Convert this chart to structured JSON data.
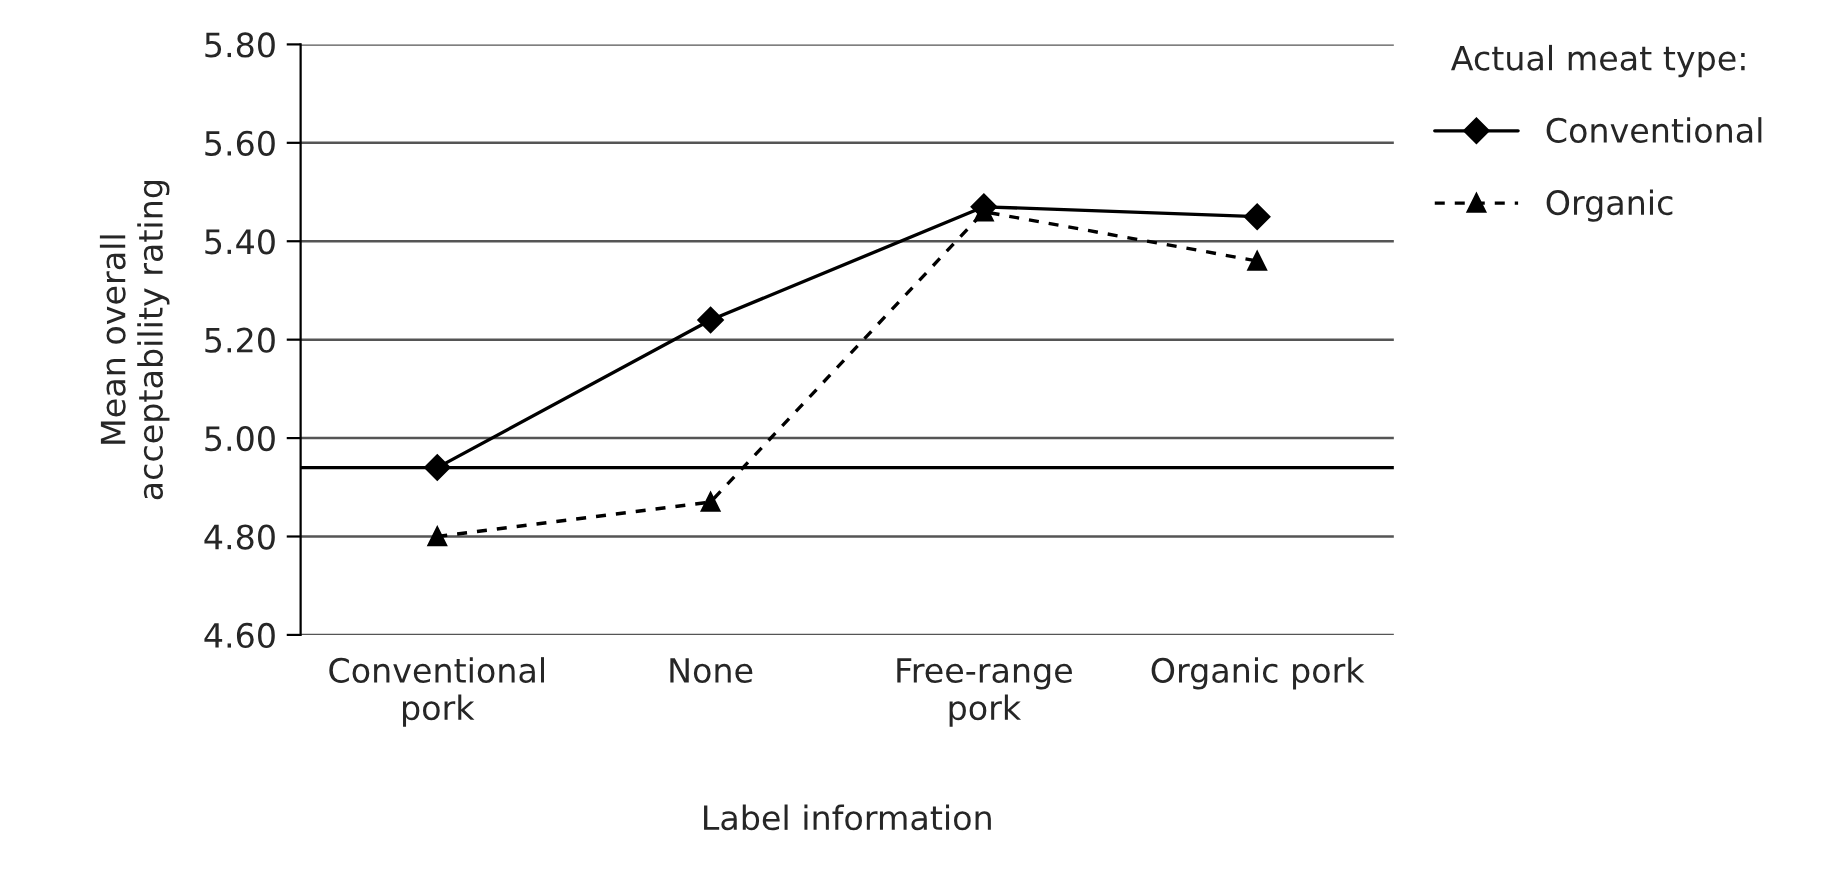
{
  "chart_data": {
    "type": "line",
    "xlabel": "Label information",
    "ylabel": "Mean overall\nacceptability rating",
    "legend_title": "Actual meat type:",
    "categories": [
      "Conventional\npork",
      "None",
      "Free-range\npork",
      "Organic pork"
    ],
    "series": [
      {
        "name": "Conventional",
        "color": "#000000",
        "values": [
          4.94,
          5.24,
          5.47,
          5.45
        ],
        "marker": "diamond",
        "line_style": "solid"
      },
      {
        "name": "Organic",
        "color": "#000000",
        "values": [
          4.8,
          4.87,
          5.46,
          5.36
        ],
        "marker": "triangle",
        "line_style": "dashed"
      }
    ],
    "ylim": [
      4.6,
      5.8
    ],
    "yticks": [
      {
        "value": 4.6,
        "label": "4.60"
      },
      {
        "value": 4.8,
        "label": "4.80"
      },
      {
        "value": 5.0,
        "label": "5.00"
      },
      {
        "value": 5.2,
        "label": "5.20"
      },
      {
        "value": 5.4,
        "label": "5.40"
      },
      {
        "value": 5.6,
        "label": "5.60"
      },
      {
        "value": 5.8,
        "label": "5.80"
      }
    ],
    "ref_lines": [
      {
        "axis": "y",
        "value": 4.94,
        "label": null,
        "color": "#000000"
      }
    ],
    "grid": "y",
    "legend": "right"
  }
}
